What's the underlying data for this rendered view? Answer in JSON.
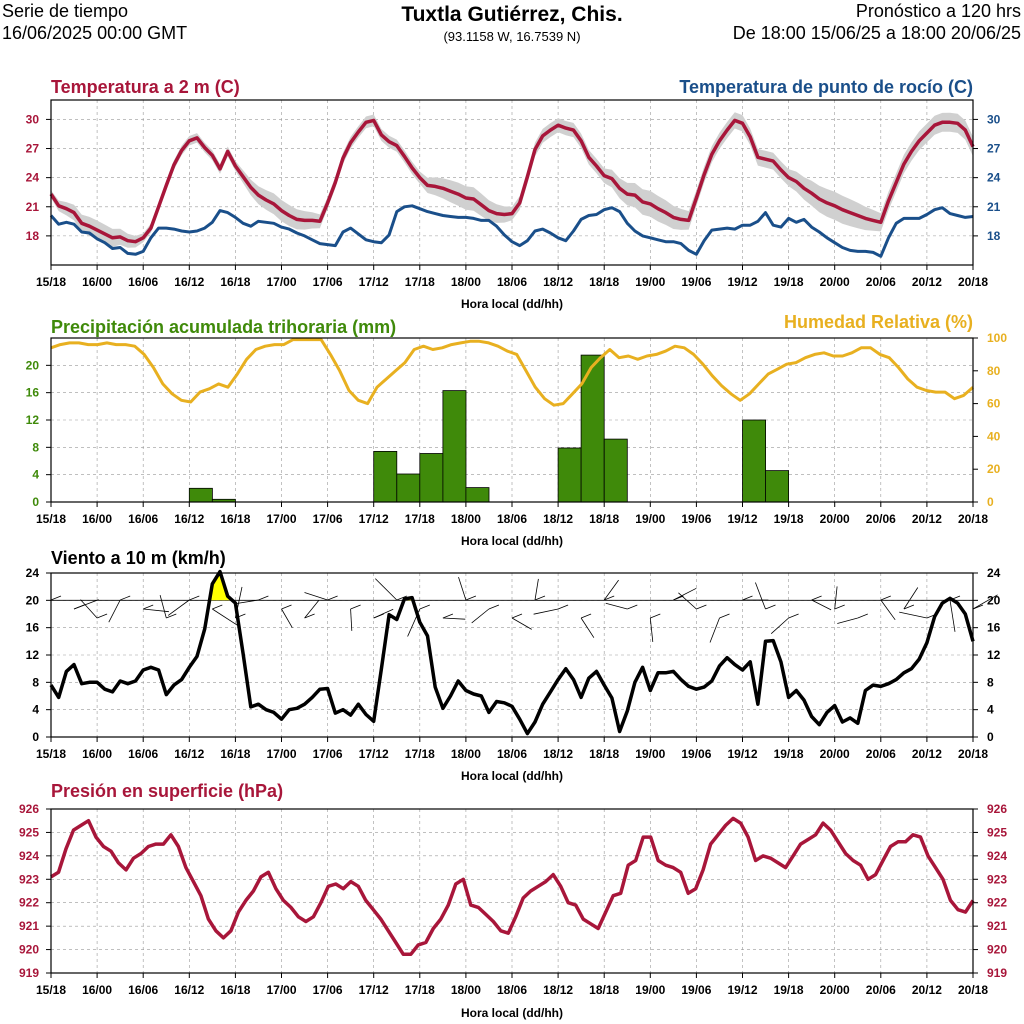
{
  "header": {
    "left_line1": "Serie de tiempo",
    "left_line2": "16/06/2025 00:00 GMT",
    "title": "Tuxtla Gutiérrez, Chis.",
    "coords": "(93.1158 W, 16.7539 N)",
    "right_line1": "Pronóstico a 120 hrs",
    "right_line2": "De 18:00 15/06/25 a 18:00 20/06/25"
  },
  "colors": {
    "temperature": "#a8163a",
    "dewpoint": "#1a4f8a",
    "precip_title": "#3f8a0a",
    "precip_bar": "#3f8a0a",
    "humidity": "#e8b020",
    "wind": "#000000",
    "wind_highlight": "#ffff00",
    "pressure": "#a8163a",
    "spread": "#d0d0d0",
    "grid": "#999999"
  },
  "chart_data": [
    {
      "type": "line",
      "name": "temperature",
      "title": "Temperatura a 2 m (C)",
      "title_right": "Temperatura de punto de rocío (C)",
      "xlabel": "Hora local (dd/hh)",
      "x_ticks": [
        "15/18",
        "16/00",
        "16/06",
        "16/12",
        "16/18",
        "17/00",
        "17/06",
        "17/12",
        "17/18",
        "18/00",
        "18/06",
        "18/12",
        "18/18",
        "19/00",
        "19/06",
        "19/12",
        "19/18",
        "20/00",
        "20/06",
        "20/12",
        "20/18"
      ],
      "ylim": [
        15,
        32
      ],
      "yticks": [
        18,
        21,
        24,
        27,
        30
      ],
      "y2_ticks": [
        18,
        21,
        24,
        27,
        30
      ],
      "series": [
        {
          "name": "Temperatura a 2 m",
          "values": [
            22.3,
            21.1,
            20.8,
            20.4,
            19.3,
            19.0,
            18.6,
            18.2,
            17.8,
            17.9,
            17.5,
            17.4,
            17.8,
            18.8,
            21.0,
            23.2,
            25.3,
            26.8,
            27.8,
            28.1,
            27.1,
            26.3,
            24.9,
            26.7,
            25.2,
            24.1,
            23.0,
            22.2,
            21.7,
            21.3,
            20.6,
            20.1,
            19.7,
            19.6,
            19.6,
            19.5,
            21.4,
            23.5,
            26.0,
            27.6,
            28.7,
            29.7,
            29.9,
            28.4,
            27.7,
            27.3,
            26.2,
            25.0,
            24.0,
            23.2,
            23.1,
            22.9,
            22.6,
            22.3,
            21.9,
            21.8,
            21.2,
            20.6,
            20.3,
            20.2,
            20.3,
            21.4,
            24.1,
            26.9,
            28.3,
            28.9,
            29.4,
            29.1,
            28.9,
            27.8,
            26.1,
            25.2,
            24.2,
            23.9,
            22.9,
            22.3,
            22.2,
            21.5,
            21.3,
            20.8,
            20.4,
            19.9,
            19.7,
            19.6,
            21.9,
            24.3,
            26.4,
            27.8,
            28.9,
            29.9,
            29.6,
            28.2,
            26.1,
            25.9,
            25.7,
            24.8,
            24.0,
            23.6,
            22.9,
            22.4,
            21.8,
            21.4,
            21.1,
            20.7,
            20.4,
            20.1,
            19.8,
            19.6,
            19.4,
            21.6,
            23.5,
            25.4,
            26.7,
            27.8,
            28.6,
            29.4,
            29.7,
            29.7,
            29.6,
            28.9,
            27.2
          ]
        },
        {
          "name": "Temperatura de punto de rocío",
          "values": [
            20.1,
            19.2,
            19.4,
            19.2,
            18.4,
            18.3,
            17.7,
            17.3,
            16.7,
            16.8,
            16.2,
            16.1,
            16.4,
            17.8,
            18.8,
            18.8,
            18.7,
            18.5,
            18.4,
            18.5,
            18.8,
            19.4,
            20.6,
            20.4,
            19.9,
            19.3,
            19.0,
            19.5,
            19.4,
            19.3,
            18.9,
            18.7,
            18.3,
            18.0,
            17.6,
            17.2,
            17.1,
            17.0,
            18.4,
            18.8,
            18.2,
            17.6,
            17.4,
            17.3,
            18.1,
            20.5,
            21.0,
            21.1,
            20.8,
            20.5,
            20.3,
            20.1,
            20.0,
            19.9,
            19.9,
            19.8,
            19.6,
            19.6,
            19.0,
            18.1,
            17.4,
            17.0,
            17.5,
            18.5,
            18.7,
            18.3,
            17.8,
            17.5,
            18.5,
            19.7,
            20.1,
            20.2,
            20.7,
            20.9,
            20.5,
            19.3,
            18.5,
            18.0,
            17.8,
            17.6,
            17.4,
            17.4,
            17.2,
            16.5,
            16.1,
            17.5,
            18.6,
            18.7,
            18.8,
            18.7,
            19.1,
            19.1,
            19.5,
            20.4,
            19.1,
            18.9,
            19.8,
            19.4,
            19.7,
            18.9,
            18.4,
            17.8,
            17.3,
            16.8,
            16.5,
            16.4,
            16.4,
            16.3,
            15.9,
            17.8,
            19.3,
            19.8,
            19.8,
            19.8,
            20.2,
            20.7,
            20.9,
            20.3,
            20.1,
            19.9,
            20.0
          ]
        }
      ]
    },
    {
      "type": "bar",
      "name": "precipitation",
      "title": "Precipitación acumulada trihoraria (mm)",
      "title_right": "Humedad Relativa (%)",
      "xlabel": "Hora local (dd/hh)",
      "x_ticks": [
        "15/18",
        "16/00",
        "16/06",
        "16/12",
        "16/18",
        "17/00",
        "17/06",
        "17/12",
        "17/18",
        "18/00",
        "18/06",
        "18/12",
        "18/18",
        "19/00",
        "19/06",
        "19/12",
        "19/18",
        "20/00",
        "20/06",
        "20/12",
        "20/18"
      ],
      "ylim": [
        0,
        24
      ],
      "yticks": [
        0,
        4,
        8,
        12,
        16,
        20
      ],
      "y2_ticks": [
        0,
        20,
        40,
        60,
        80,
        100
      ],
      "bars": [
        {
          "x": "16/12",
          "value": 2.0
        },
        {
          "x": "16/15",
          "value": 0.4
        },
        {
          "x": "17/12",
          "value": 7.4
        },
        {
          "x": "17/15",
          "value": 4.1
        },
        {
          "x": "17/18",
          "value": 7.1
        },
        {
          "x": "17/21",
          "value": 16.3
        },
        {
          "x": "18/00",
          "value": 2.1
        },
        {
          "x": "18/12",
          "value": 7.9
        },
        {
          "x": "18/15",
          "value": 21.5
        },
        {
          "x": "18/18",
          "value": 9.2
        },
        {
          "x": "19/12",
          "value": 12.0
        },
        {
          "x": "19/15",
          "value": 4.6
        }
      ],
      "humidity": [
        94,
        96,
        97,
        97,
        96,
        96,
        97,
        96,
        96,
        95,
        90,
        82,
        72,
        66,
        62,
        61,
        67,
        69,
        72,
        70,
        78,
        87,
        93,
        95,
        96,
        96,
        99,
        99,
        99,
        99,
        90,
        80,
        68,
        62,
        60,
        70,
        75,
        80,
        85,
        93,
        95,
        93,
        94,
        96,
        97,
        98,
        98,
        97,
        95,
        92,
        90,
        80,
        70,
        63,
        59,
        60,
        66,
        72,
        82,
        88,
        93,
        88,
        89,
        87,
        89,
        90,
        92,
        95,
        94,
        90,
        84,
        77,
        71,
        66,
        62,
        66,
        72,
        78,
        81,
        84,
        85,
        88,
        90,
        91,
        89,
        89,
        91,
        94,
        94,
        90,
        88,
        82,
        75,
        70,
        68,
        67,
        67,
        63,
        65,
        70
      ]
    },
    {
      "type": "line",
      "name": "wind",
      "title": "Viento a 10 m (km/h)",
      "xlabel": "Hora local (dd/hh)",
      "x_ticks": [
        "15/18",
        "16/00",
        "16/06",
        "16/12",
        "16/18",
        "17/00",
        "17/06",
        "17/12",
        "17/18",
        "18/00",
        "18/06",
        "18/12",
        "18/18",
        "19/00",
        "19/06",
        "19/12",
        "19/18",
        "20/00",
        "20/06",
        "20/12",
        "20/18"
      ],
      "ylim": [
        0,
        24
      ],
      "yticks": [
        0,
        4,
        8,
        12,
        16,
        20,
        24
      ],
      "y2_ticks": [
        0,
        4,
        8,
        12,
        16,
        20,
        24
      ],
      "highlight_threshold": 20,
      "values": [
        7.6,
        5.8,
        9.6,
        10.6,
        7.8,
        8.0,
        8.0,
        7.0,
        6.6,
        8.2,
        7.8,
        8.2,
        9.8,
        10.2,
        9.8,
        6.2,
        7.6,
        8.4,
        10.2,
        11.8,
        15.8,
        22.4,
        24.2,
        20.6,
        19.6,
        12.2,
        4.4,
        4.8,
        4.0,
        3.6,
        2.6,
        4.0,
        4.2,
        4.8,
        5.8,
        7.0,
        7.1,
        3.5,
        4.0,
        3.2,
        4.8,
        3.3,
        2.3,
        10.0,
        17.9,
        17.2,
        20.2,
        20.4,
        16.8,
        14.8,
        7.3,
        4.2,
        6.0,
        8.2,
        6.8,
        6.3,
        6.0,
        3.6,
        5.2,
        5.0,
        4.5,
        2.6,
        0.5,
        2.2,
        4.8,
        6.6,
        8.4,
        10.0,
        8.4,
        5.8,
        8.6,
        9.6,
        7.6,
        5.7,
        0.8,
        3.8,
        8.0,
        10.2,
        6.8,
        9.4,
        9.4,
        9.6,
        8.4,
        7.4,
        7.0,
        7.3,
        8.2,
        10.4,
        11.6,
        10.6,
        9.8,
        11.0,
        4.8,
        14.0,
        14.1,
        11.0,
        5.8,
        6.8,
        5.4,
        3.0,
        1.8,
        3.6,
        4.6,
        2.2,
        2.8,
        2.0,
        6.8,
        7.6,
        7.4,
        7.8,
        8.4,
        9.4,
        10.0,
        11.4,
        13.8,
        17.6,
        19.6,
        20.3,
        19.6,
        18.0,
        14.0
      ]
    },
    {
      "type": "line",
      "name": "pressure",
      "title": "Presión en superficie (hPa)",
      "xlabel": "Hora local (dd/hh)",
      "x_ticks": [
        "15/18",
        "16/00",
        "16/06",
        "16/12",
        "16/18",
        "17/00",
        "17/06",
        "17/12",
        "17/18",
        "18/00",
        "18/06",
        "18/12",
        "18/18",
        "19/00",
        "19/06",
        "19/12",
        "19/18",
        "20/00",
        "20/06",
        "20/12",
        "20/18"
      ],
      "ylim": [
        919,
        926
      ],
      "yticks": [
        919,
        920,
        921,
        922,
        923,
        924,
        925,
        926
      ],
      "y2_ticks": [
        919,
        920,
        921,
        922,
        923,
        924,
        925,
        926
      ],
      "values": [
        923.1,
        923.3,
        924.3,
        925.1,
        925.3,
        925.5,
        924.8,
        924.4,
        924.2,
        923.7,
        923.4,
        923.9,
        924.1,
        924.4,
        924.5,
        924.5,
        924.9,
        924.4,
        923.5,
        922.9,
        922.3,
        921.3,
        920.8,
        920.5,
        920.8,
        921.6,
        922.1,
        922.5,
        923.1,
        923.3,
        922.6,
        922.1,
        921.8,
        921.4,
        921.2,
        921.4,
        922.0,
        922.7,
        922.8,
        922.6,
        922.9,
        922.7,
        922.1,
        921.7,
        921.3,
        920.8,
        920.3,
        919.8,
        919.8,
        920.2,
        920.3,
        920.9,
        921.3,
        921.9,
        922.8,
        923.0,
        921.9,
        921.8,
        921.5,
        921.2,
        920.8,
        920.7,
        921.4,
        922.2,
        922.5,
        922.7,
        922.9,
        923.2,
        922.7,
        922.0,
        921.9,
        921.3,
        921.1,
        920.9,
        921.6,
        922.3,
        922.4,
        923.6,
        923.8,
        924.8,
        924.8,
        923.8,
        923.6,
        923.5,
        923.3,
        922.4,
        922.6,
        923.4,
        924.5,
        924.9,
        925.3,
        925.6,
        925.4,
        924.8,
        923.8,
        924.0,
        923.9,
        923.7,
        923.5,
        924.0,
        924.5,
        924.7,
        924.9,
        925.4,
        925.1,
        924.6,
        924.1,
        923.8,
        923.6,
        923.0,
        923.2,
        923.8,
        924.4,
        924.6,
        924.6,
        924.9,
        924.8,
        924.0,
        923.5,
        923.0,
        922.1,
        921.7,
        921.6,
        922.1
      ]
    }
  ]
}
